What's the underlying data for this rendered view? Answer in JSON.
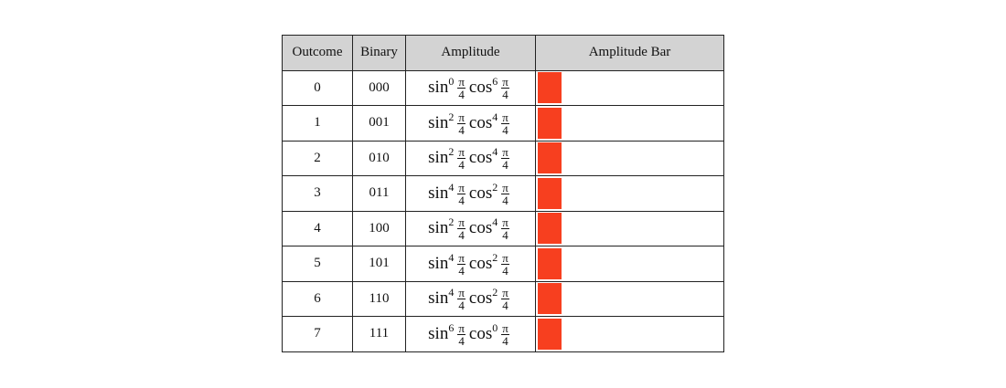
{
  "table": {
    "headers": [
      "Outcome",
      "Binary",
      "Amplitude",
      "Amplitude Bar"
    ],
    "rows": [
      {
        "outcome": "0",
        "binary": "000",
        "amplitude": {
          "sin": "sin",
          "sin_exp": "0",
          "cos": "cos",
          "cos_exp": "6",
          "angle_num": "π",
          "angle_den": "4"
        },
        "bar": 0.125
      },
      {
        "outcome": "1",
        "binary": "001",
        "amplitude": {
          "sin": "sin",
          "sin_exp": "2",
          "cos": "cos",
          "cos_exp": "4",
          "angle_num": "π",
          "angle_den": "4"
        },
        "bar": 0.125
      },
      {
        "outcome": "2",
        "binary": "010",
        "amplitude": {
          "sin": "sin",
          "sin_exp": "2",
          "cos": "cos",
          "cos_exp": "4",
          "angle_num": "π",
          "angle_den": "4"
        },
        "bar": 0.125
      },
      {
        "outcome": "3",
        "binary": "011",
        "amplitude": {
          "sin": "sin",
          "sin_exp": "4",
          "cos": "cos",
          "cos_exp": "2",
          "angle_num": "π",
          "angle_den": "4"
        },
        "bar": 0.125
      },
      {
        "outcome": "4",
        "binary": "100",
        "amplitude": {
          "sin": "sin",
          "sin_exp": "2",
          "cos": "cos",
          "cos_exp": "4",
          "angle_num": "π",
          "angle_den": "4"
        },
        "bar": 0.125
      },
      {
        "outcome": "5",
        "binary": "101",
        "amplitude": {
          "sin": "sin",
          "sin_exp": "4",
          "cos": "cos",
          "cos_exp": "2",
          "angle_num": "π",
          "angle_den": "4"
        },
        "bar": 0.125
      },
      {
        "outcome": "6",
        "binary": "110",
        "amplitude": {
          "sin": "sin",
          "sin_exp": "4",
          "cos": "cos",
          "cos_exp": "2",
          "angle_num": "π",
          "angle_den": "4"
        },
        "bar": 0.125
      },
      {
        "outcome": "7",
        "binary": "111",
        "amplitude": {
          "sin": "sin",
          "sin_exp": "6",
          "cos": "cos",
          "cos_exp": "0",
          "angle_num": "π",
          "angle_den": "4"
        },
        "bar": 0.125
      }
    ]
  }
}
